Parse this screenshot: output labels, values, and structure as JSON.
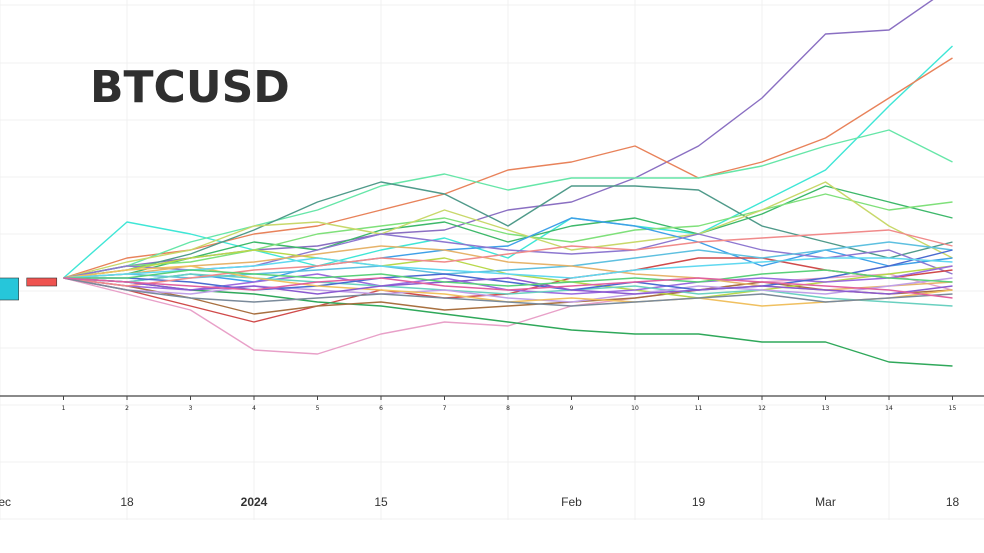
{
  "chart_data": {
    "type": "line",
    "title": "BTCUSD",
    "xlabel": "",
    "ylabel": "",
    "grid": true,
    "legend": "none",
    "x_index": [
      1,
      2,
      3,
      4,
      5,
      6,
      7,
      8,
      9,
      10,
      11,
      12,
      13,
      14,
      15
    ],
    "x_index_labels": [
      "1",
      "2",
      "3",
      "4",
      "5",
      "6",
      "7",
      "8",
      "9",
      "10",
      "11",
      "12",
      "13",
      "14",
      "15"
    ],
    "date_ticks": [
      {
        "label": "ec",
        "pos": 0,
        "bold": false
      },
      {
        "label": "18",
        "pos": 2,
        "bold": false
      },
      {
        "label": "2024",
        "pos": 4,
        "bold": true
      },
      {
        "label": "15",
        "pos": 6,
        "bold": false
      },
      {
        "label": "Feb",
        "pos": 9,
        "bold": false
      },
      {
        "label": "19",
        "pos": 11,
        "bold": false
      },
      {
        "label": "Mar",
        "pos": 13,
        "bold": false
      },
      {
        "label": "18",
        "pos": 15,
        "bold": false
      }
    ],
    "ylim": [
      0,
      100
    ],
    "start_value": 33,
    "candles": [
      {
        "pos": -0.1,
        "open": 33,
        "close": 27.5,
        "color": "#26c6da"
      },
      {
        "pos": 0.5,
        "open": 33,
        "close": 31,
        "color": "#ef5350"
      }
    ],
    "series": [
      {
        "color": "#8a6fc2",
        "values": [
          33,
          36,
          38,
          40,
          41,
          44,
          45,
          50,
          52,
          58,
          66,
          78,
          94,
          95,
          106
        ]
      },
      {
        "color": "#3fe6d6",
        "values": [
          33,
          47,
          44,
          40,
          36,
          40,
          43,
          38,
          48,
          46,
          44,
          52,
          60,
          76,
          91
        ]
      },
      {
        "color": "#e8825a",
        "values": [
          33,
          38,
          40,
          44,
          46,
          50,
          54,
          60,
          62,
          66,
          58,
          62,
          68,
          78,
          88
        ]
      },
      {
        "color": "#66e6a8",
        "values": [
          33,
          36,
          42,
          46,
          50,
          56,
          59,
          55,
          58,
          58,
          58,
          61,
          66,
          70,
          62
        ]
      },
      {
        "color": "#4f9a8a",
        "values": [
          33,
          35,
          39,
          45,
          52,
          57,
          54,
          46,
          56,
          56,
          55,
          46,
          42,
          38,
          42
        ]
      },
      {
        "color": "#3db86a",
        "values": [
          33,
          34,
          38,
          42,
          40,
          45,
          47,
          42,
          46,
          48,
          44,
          49,
          56,
          52,
          48
        ]
      },
      {
        "color": "#7fe07a",
        "values": [
          33,
          36,
          37,
          40,
          44,
          46,
          48,
          44,
          42,
          45,
          46,
          50,
          54,
          50,
          52
        ]
      },
      {
        "color": "#c8d86a",
        "values": [
          33,
          37,
          40,
          46,
          47,
          44,
          50,
          45,
          40,
          42,
          44,
          50,
          57,
          46,
          38
        ]
      },
      {
        "color": "#3fa0e8",
        "values": [
          33,
          32,
          34,
          32,
          36,
          38,
          40,
          41,
          48,
          46,
          42,
          36,
          40,
          36,
          38
        ]
      },
      {
        "color": "#8d77d0",
        "values": [
          33,
          36,
          35,
          36,
          40,
          44,
          42,
          40,
          39,
          40,
          44,
          40,
          38,
          40,
          34
        ]
      },
      {
        "color": "#e8a0c8",
        "values": [
          33,
          29,
          25,
          15,
          14,
          19,
          22,
          21,
          26,
          28,
          30,
          32,
          33,
          34,
          30
        ]
      },
      {
        "color": "#d04a4a",
        "values": [
          33,
          30,
          26,
          22,
          26,
          30,
          28,
          29,
          33,
          35,
          38,
          38,
          35,
          33,
          35
        ]
      },
      {
        "color": "#2fa85a",
        "values": [
          33,
          32,
          30,
          29,
          27,
          26,
          24,
          22,
          20,
          19,
          19,
          17,
          17,
          12,
          11
        ]
      },
      {
        "color": "#a87040",
        "values": [
          33,
          31,
          28,
          24,
          26,
          27,
          25,
          26,
          27,
          28,
          30,
          32,
          30,
          29,
          30
        ]
      },
      {
        "color": "#b8d84a",
        "values": [
          33,
          35,
          38,
          40,
          38,
          36,
          38,
          34,
          32,
          30,
          28,
          30,
          32,
          34,
          36
        ]
      },
      {
        "color": "#5ec0e0",
        "values": [
          33,
          34,
          33,
          34,
          35,
          36,
          34,
          35,
          36,
          38,
          40,
          38,
          40,
          42,
          40
        ]
      },
      {
        "color": "#9a6adf",
        "values": [
          33,
          31,
          30,
          32,
          34,
          31,
          33,
          30,
          29,
          30,
          32,
          33,
          32,
          33,
          36
        ]
      },
      {
        "color": "#e6b36a",
        "values": [
          33,
          34,
          36,
          37,
          39,
          41,
          40,
          37,
          36,
          34,
          33,
          31,
          30,
          31,
          32
        ]
      },
      {
        "color": "#6ad0c0",
        "values": [
          33,
          32,
          34,
          33,
          32,
          31,
          30,
          29,
          30,
          31,
          29,
          30,
          28,
          27,
          26
        ]
      },
      {
        "color": "#c0a0e8",
        "values": [
          33,
          30,
          29,
          31,
          30,
          29,
          30,
          28,
          27,
          29,
          31,
          30,
          29,
          31,
          33
        ]
      },
      {
        "color": "#4a6ad0",
        "values": [
          33,
          33,
          32,
          30,
          31,
          33,
          34,
          32,
          30,
          32,
          30,
          31,
          33,
          36,
          40
        ]
      },
      {
        "color": "#f0c060",
        "values": [
          33,
          35,
          36,
          33,
          31,
          30,
          29,
          27,
          28,
          27,
          28,
          26,
          27,
          28,
          30
        ]
      },
      {
        "color": "#60d8f0",
        "values": [
          33,
          34,
          35,
          36,
          38,
          36,
          35,
          34,
          33,
          35,
          36,
          37,
          38,
          38,
          37
        ]
      },
      {
        "color": "#f08a8a",
        "values": [
          33,
          31,
          33,
          35,
          36,
          38,
          37,
          39,
          41,
          40,
          42,
          43,
          44,
          45,
          41
        ]
      },
      {
        "color": "#7a8a9a",
        "values": [
          33,
          30,
          28,
          27,
          28,
          29,
          28,
          27,
          26,
          27,
          28,
          29,
          27,
          28,
          29
        ]
      },
      {
        "color": "#8a5ad0",
        "values": [
          33,
          32,
          30,
          31,
          29,
          31,
          32,
          33,
          30,
          29,
          30,
          31,
          30,
          29,
          31
        ]
      },
      {
        "color": "#5ad07a",
        "values": [
          33,
          33,
          35,
          34,
          33,
          34,
          32,
          31,
          32,
          33,
          32,
          34,
          35,
          33,
          32
        ]
      },
      {
        "color": "#e060a0",
        "values": [
          33,
          32,
          31,
          30,
          32,
          33,
          31,
          30,
          31,
          32,
          33,
          32,
          31,
          30,
          28
        ]
      }
    ]
  }
}
